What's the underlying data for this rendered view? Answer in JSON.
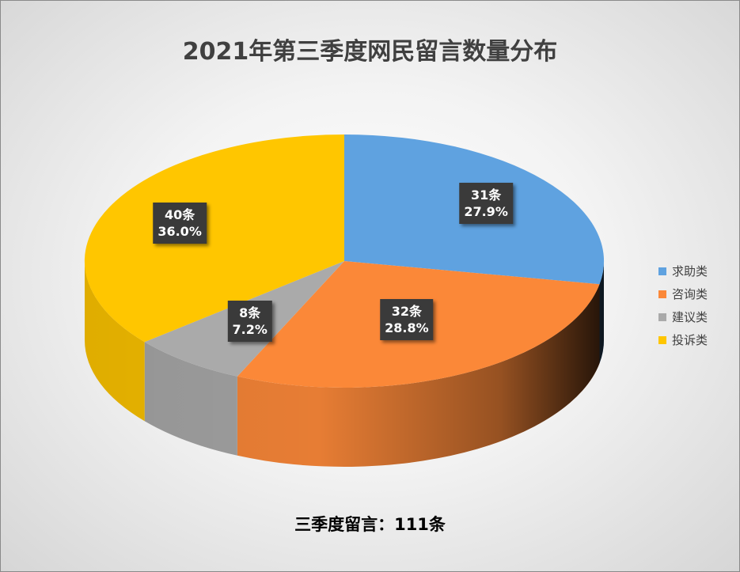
{
  "chart_data": {
    "type": "pie",
    "title": "2021年第三季度网民留言数量分布",
    "categories": [
      "求助类",
      "咨询类",
      "建议类",
      "投诉类"
    ],
    "values": [
      31,
      32,
      8,
      40
    ],
    "value_labels": [
      "31条",
      "32条",
      "8条",
      "40条"
    ],
    "percent_labels": [
      "27.9%",
      "28.8%",
      "7.2%",
      "36.0%"
    ],
    "colors": [
      "#5fa2e0",
      "#fb8838",
      "#aaaaaa",
      "#ffc600"
    ],
    "legend_position": "right",
    "annotation": "三季度留言：111条"
  }
}
